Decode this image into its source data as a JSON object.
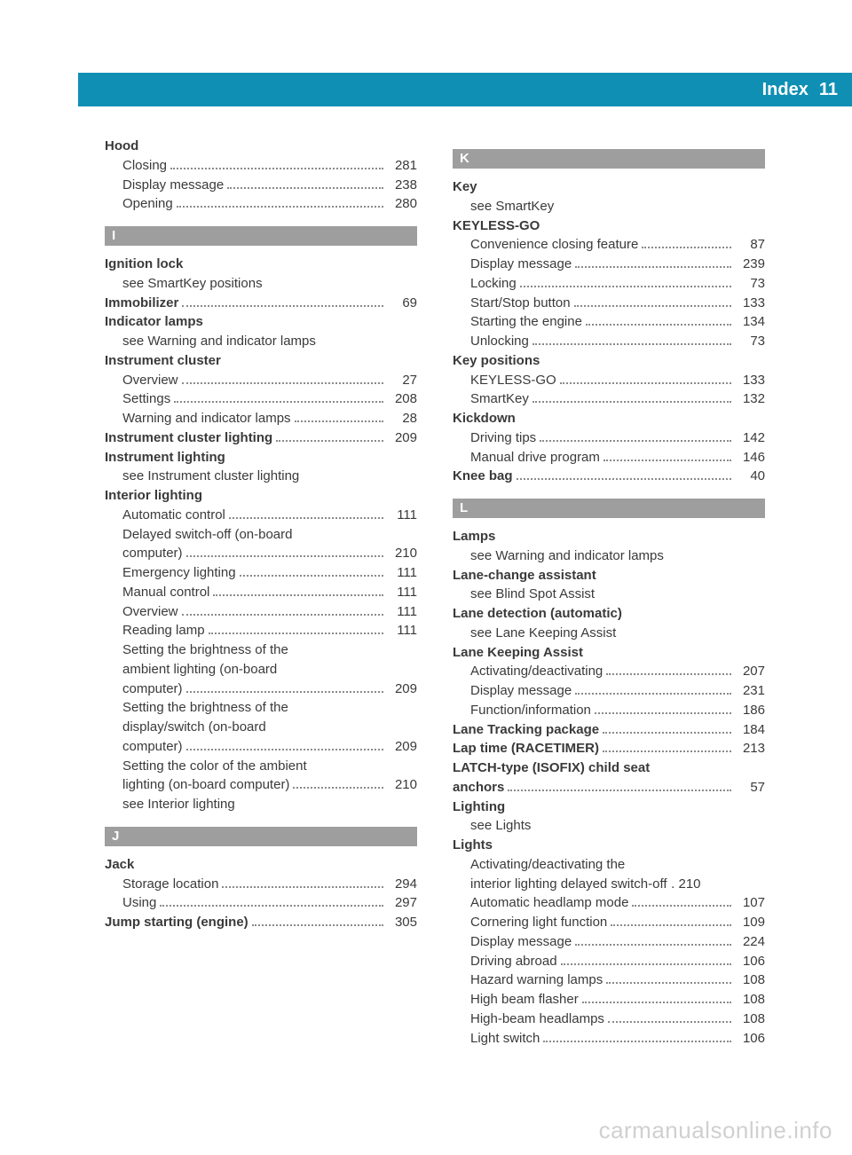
{
  "header": {
    "title": "Index",
    "page": "11"
  },
  "colors": {
    "header_bg": "#0f8fb3",
    "section_bg": "#9e9e9e",
    "text": "#3a3a3a",
    "dots": "#8a8a8a",
    "watermark": "#d0d0d0"
  },
  "watermark": "carmanualsonline.info",
  "left": [
    {
      "t": "bold",
      "label": "Hood"
    },
    {
      "t": "sub",
      "label": "Closing",
      "page": "281"
    },
    {
      "t": "sub",
      "label": "Display message",
      "page": "238"
    },
    {
      "t": "sub",
      "label": "Opening",
      "page": "280"
    },
    {
      "t": "section",
      "label": "I"
    },
    {
      "t": "bold",
      "label": "Ignition lock"
    },
    {
      "t": "see",
      "label": "see SmartKey positions"
    },
    {
      "t": "boldp",
      "label": "Immobilizer",
      "page": "69"
    },
    {
      "t": "bold",
      "label": "Indicator lamps"
    },
    {
      "t": "see",
      "label": "see Warning and indicator lamps"
    },
    {
      "t": "bold",
      "label": "Instrument cluster"
    },
    {
      "t": "sub",
      "label": "Overview",
      "page": "27"
    },
    {
      "t": "sub",
      "label": "Settings",
      "page": "208"
    },
    {
      "t": "sub",
      "label": "Warning and indicator lamps",
      "page": "28"
    },
    {
      "t": "boldp",
      "label": "Instrument cluster lighting",
      "page": "209"
    },
    {
      "t": "bold",
      "label": "Instrument lighting"
    },
    {
      "t": "see",
      "label": "see Instrument cluster lighting"
    },
    {
      "t": "bold",
      "label": "Interior lighting"
    },
    {
      "t": "sub",
      "label": "Automatic control",
      "page": "111"
    },
    {
      "t": "multi",
      "lines": [
        "Delayed switch-off (on-board",
        "computer)"
      ],
      "page": "210"
    },
    {
      "t": "sub",
      "label": "Emergency lighting",
      "page": "111"
    },
    {
      "t": "sub",
      "label": "Manual control",
      "page": "111"
    },
    {
      "t": "sub",
      "label": "Overview",
      "page": "111"
    },
    {
      "t": "sub",
      "label": "Reading lamp",
      "page": "111"
    },
    {
      "t": "multi",
      "lines": [
        "Setting the brightness of the",
        "ambient lighting (on-board",
        "computer)"
      ],
      "page": "209"
    },
    {
      "t": "multi",
      "lines": [
        "Setting the brightness of the",
        "display/switch (on-board",
        "computer)"
      ],
      "page": "209"
    },
    {
      "t": "multi",
      "lines": [
        "Setting the color of the ambient",
        "lighting (on-board computer)"
      ],
      "page": "210"
    },
    {
      "t": "see",
      "label": "see Interior lighting"
    },
    {
      "t": "section",
      "label": "J"
    },
    {
      "t": "bold",
      "label": "Jack"
    },
    {
      "t": "sub",
      "label": "Storage location",
      "page": "294"
    },
    {
      "t": "sub",
      "label": "Using",
      "page": "297"
    },
    {
      "t": "boldp",
      "label": "Jump starting (engine)",
      "page": "305"
    }
  ],
  "right": [
    {
      "t": "section",
      "label": "K"
    },
    {
      "t": "bold",
      "label": "Key"
    },
    {
      "t": "see",
      "label": "see SmartKey"
    },
    {
      "t": "bold",
      "label": "KEYLESS-GO"
    },
    {
      "t": "sub",
      "label": "Convenience closing feature",
      "page": "87"
    },
    {
      "t": "sub",
      "label": "Display message",
      "page": "239"
    },
    {
      "t": "sub",
      "label": "Locking",
      "page": "73"
    },
    {
      "t": "sub",
      "label": "Start/Stop button",
      "page": "133"
    },
    {
      "t": "sub",
      "label": "Starting the engine",
      "page": "134"
    },
    {
      "t": "sub",
      "label": "Unlocking",
      "page": "73"
    },
    {
      "t": "bold",
      "label": "Key positions"
    },
    {
      "t": "sub",
      "label": "KEYLESS-GO",
      "page": "133"
    },
    {
      "t": "sub",
      "label": "SmartKey",
      "page": "132"
    },
    {
      "t": "bold",
      "label": "Kickdown"
    },
    {
      "t": "sub",
      "label": "Driving tips",
      "page": "142"
    },
    {
      "t": "sub",
      "label": "Manual drive program",
      "page": "146"
    },
    {
      "t": "boldp",
      "label": "Knee bag",
      "page": "40"
    },
    {
      "t": "section",
      "label": "L"
    },
    {
      "t": "bold",
      "label": "Lamps"
    },
    {
      "t": "see",
      "label": "see Warning and indicator lamps"
    },
    {
      "t": "bold",
      "label": "Lane-change assistant"
    },
    {
      "t": "see",
      "label": "see Blind Spot Assist"
    },
    {
      "t": "bold",
      "label": "Lane detection (automatic)"
    },
    {
      "t": "see",
      "label": "see Lane Keeping Assist"
    },
    {
      "t": "bold",
      "label": "Lane Keeping Assist"
    },
    {
      "t": "sub",
      "label": "Activating/deactivating",
      "page": "207"
    },
    {
      "t": "sub",
      "label": "Display message",
      "page": "231"
    },
    {
      "t": "sub",
      "label": "Function/information",
      "page": "186"
    },
    {
      "t": "boldp",
      "label": "Lane Tracking package",
      "page": "184"
    },
    {
      "t": "boldp",
      "label": "Lap time (RACETIMER)",
      "page": "213"
    },
    {
      "t": "boldmulti",
      "lines": [
        "LATCH-type (ISOFIX) child seat",
        "anchors"
      ],
      "page": "57"
    },
    {
      "t": "bold",
      "label": "Lighting"
    },
    {
      "t": "see",
      "label": "see Lights"
    },
    {
      "t": "bold",
      "label": "Lights"
    },
    {
      "t": "multi",
      "lines": [
        "Activating/deactivating the",
        "interior lighting delayed switch-off"
      ],
      "page": "210",
      "tight": true
    },
    {
      "t": "sub",
      "label": "Automatic headlamp mode",
      "page": "107"
    },
    {
      "t": "sub",
      "label": "Cornering light function",
      "page": "109"
    },
    {
      "t": "sub",
      "label": "Display message",
      "page": "224"
    },
    {
      "t": "sub",
      "label": "Driving abroad",
      "page": "106"
    },
    {
      "t": "sub",
      "label": "Hazard warning lamps",
      "page": "108"
    },
    {
      "t": "sub",
      "label": "High beam flasher",
      "page": "108"
    },
    {
      "t": "sub",
      "label": "High-beam headlamps",
      "page": "108"
    },
    {
      "t": "sub",
      "label": "Light switch",
      "page": "106"
    }
  ]
}
